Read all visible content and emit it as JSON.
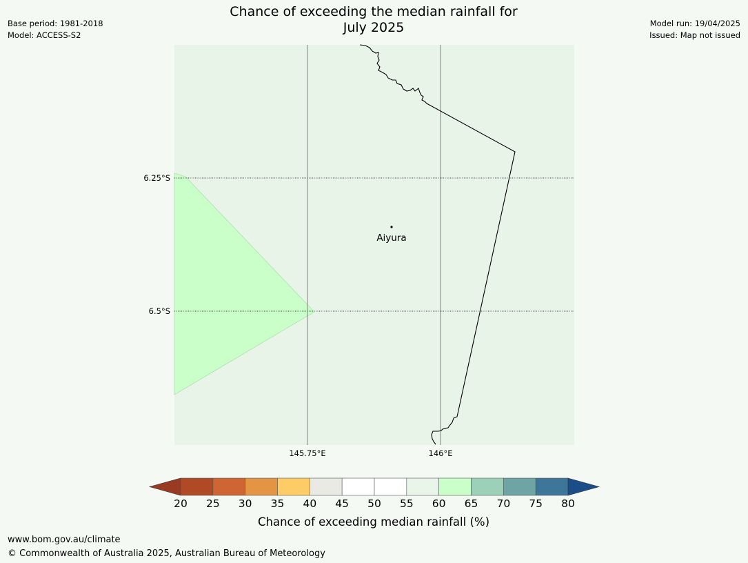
{
  "header": {
    "title_line1": "Chance of exceeding the median rainfall for",
    "title_line2": "July 2025",
    "base_period": "Base period: 1981-2018",
    "model": "Model: ACCESS-S2",
    "model_run": "Model run: 19/04/2025",
    "issued": "Issued: Map not issued"
  },
  "map": {
    "lat_labels": [
      "6.25°S",
      "6.5°S"
    ],
    "lon_labels": [
      "145.75°E",
      "146°E"
    ],
    "place": {
      "name": "Aiyura"
    },
    "colors": {
      "ocean_background": "#e9f4e9",
      "band_60_65": "#caffca",
      "coastline": "#000000",
      "gridline": "#808080"
    }
  },
  "colorbar": {
    "label": "Chance of exceeding median rainfall (%)",
    "ticks": [
      "20",
      "25",
      "30",
      "35",
      "40",
      "45",
      "50",
      "55",
      "60",
      "65",
      "70",
      "75",
      "80"
    ],
    "colors": [
      "#993a22",
      "#b04a24",
      "#cf6532",
      "#e49544",
      "#fecc66",
      "#e8eae3",
      "#ffffff",
      "#ffffff",
      "#eaf5ea",
      "#caffca",
      "#9dd0b8",
      "#6ea4a4",
      "#3d7698",
      "#1b4e88"
    ]
  },
  "footer": {
    "url": "www.bom.gov.au/climate",
    "copyright": "© Commonwealth of Australia 2025, Australian Bureau of Meteorology"
  }
}
